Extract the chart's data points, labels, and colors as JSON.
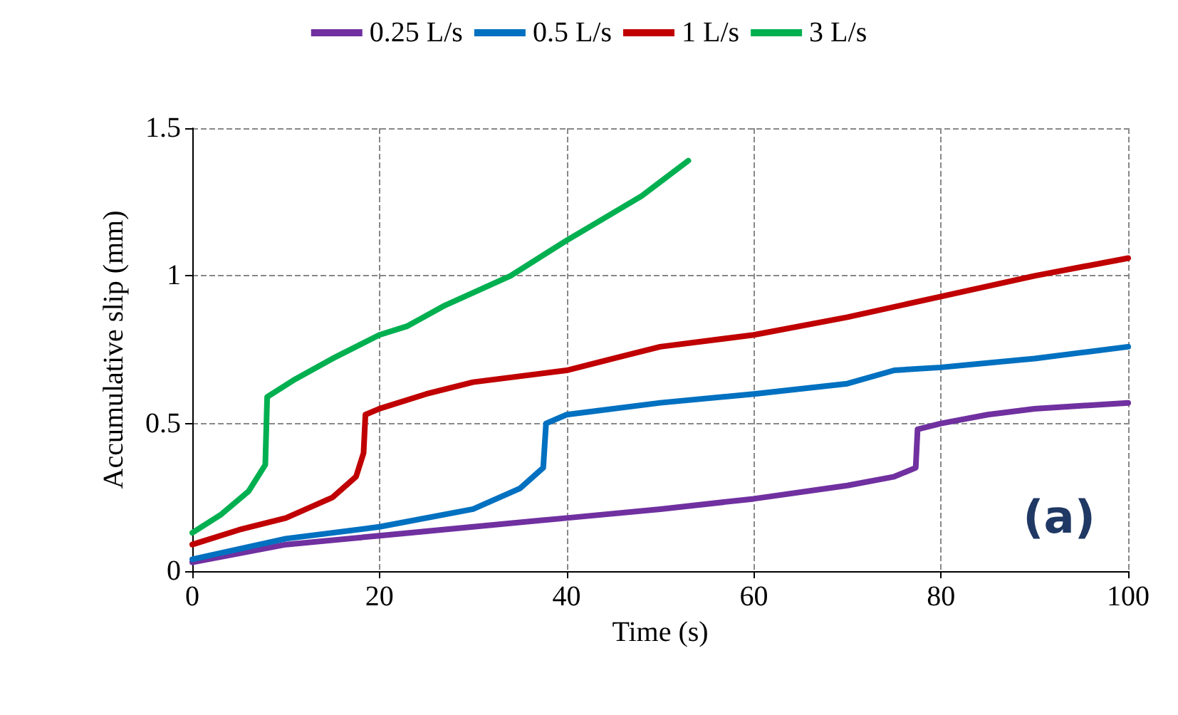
{
  "chart_data": {
    "type": "line",
    "xlabel": "Time (s)",
    "ylabel": "Accumulative slip (mm)",
    "xlim": [
      0,
      100
    ],
    "xticks": [
      0,
      20,
      40,
      60,
      80,
      100
    ],
    "ylim": [
      0,
      1.5
    ],
    "yticks": [
      0,
      0.5,
      1,
      1.5
    ],
    "grid": true,
    "legend": "top",
    "marker": "none",
    "line_style": "solid",
    "annotations": [
      "(a)"
    ],
    "series": [
      {
        "name": "0.25 L/s",
        "color": "#7030a0",
        "x": [
          0,
          10,
          20,
          30,
          40,
          50,
          60,
          70,
          75,
          77.3,
          77.5,
          80,
          85,
          90,
          100
        ],
        "values": [
          0.03,
          0.09,
          0.12,
          0.15,
          0.18,
          0.21,
          0.245,
          0.29,
          0.32,
          0.35,
          0.48,
          0.5,
          0.53,
          0.55,
          0.57
        ]
      },
      {
        "name": "0.5 L/s",
        "color": "#0070c0",
        "x": [
          0,
          10,
          20,
          30,
          35,
          37.5,
          37.8,
          40,
          50,
          60,
          70,
          75,
          80,
          90,
          95,
          100
        ],
        "values": [
          0.04,
          0.11,
          0.15,
          0.21,
          0.28,
          0.35,
          0.5,
          0.53,
          0.57,
          0.6,
          0.635,
          0.68,
          0.69,
          0.72,
          0.74,
          0.76
        ]
      },
      {
        "name": "1 L/s",
        "color": "#c00000",
        "x": [
          0,
          5,
          10,
          15,
          17.5,
          18.3,
          18.5,
          20,
          25,
          30,
          40,
          45,
          50,
          60,
          70,
          80,
          90,
          100
        ],
        "values": [
          0.09,
          0.14,
          0.18,
          0.25,
          0.32,
          0.4,
          0.53,
          0.55,
          0.6,
          0.64,
          0.68,
          0.72,
          0.76,
          0.8,
          0.86,
          0.93,
          1.0,
          1.06
        ]
      },
      {
        "name": "3 L/s",
        "color": "#00b050",
        "x": [
          0,
          3,
          6,
          7.8,
          8,
          11,
          15,
          20,
          23,
          27,
          34,
          40,
          48,
          53
        ],
        "values": [
          0.13,
          0.19,
          0.27,
          0.36,
          0.59,
          0.65,
          0.72,
          0.8,
          0.83,
          0.9,
          1.0,
          1.12,
          1.27,
          1.39
        ]
      }
    ]
  }
}
